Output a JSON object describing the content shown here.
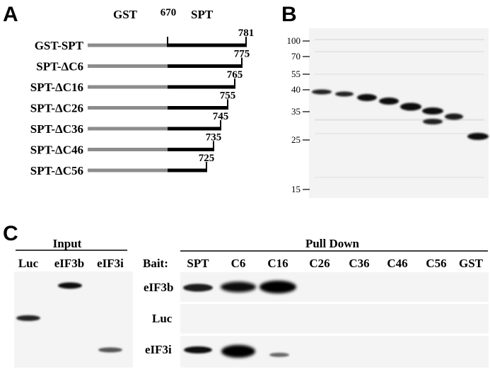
{
  "panels": {
    "a": {
      "label": "A",
      "gst_label": "GST",
      "spt_label": "SPT",
      "start_residue": "670",
      "constructs": [
        {
          "name": "GST-SPT",
          "end": "781",
          "end_value": 781
        },
        {
          "name": "SPT-ΔC6",
          "end": "775",
          "end_value": 775
        },
        {
          "name": "SPT-ΔC16",
          "end": "765",
          "end_value": 765
        },
        {
          "name": "SPT-ΔC26",
          "end": "755",
          "end_value": 755
        },
        {
          "name": "SPT-ΔC36",
          "end": "745",
          "end_value": 745
        },
        {
          "name": "SPT-ΔC46",
          "end": "735",
          "end_value": 735
        },
        {
          "name": "SPT-ΔC56",
          "end": "725",
          "end_value": 725
        }
      ]
    },
    "b": {
      "label": "B",
      "markers": [
        "100",
        "70",
        "55",
        "40",
        "35",
        "25",
        "15"
      ]
    },
    "c": {
      "label": "C",
      "input_title": "Input",
      "input_lanes": [
        "Luc",
        "eIF3b",
        "eIF3i"
      ],
      "pulldown_title": "Pull Down",
      "bait_label": "Bait:",
      "bait_lanes": [
        "SPT",
        "C6",
        "C16",
        "C26",
        "C36",
        "C46",
        "C56",
        "GST"
      ],
      "rows": [
        "eIF3b",
        "Luc",
        "eIF3i"
      ]
    }
  },
  "colors": {
    "gst_bar": "#8c8c8c",
    "spt_bar": "#000000",
    "gel_background": "#f4f4f4"
  }
}
